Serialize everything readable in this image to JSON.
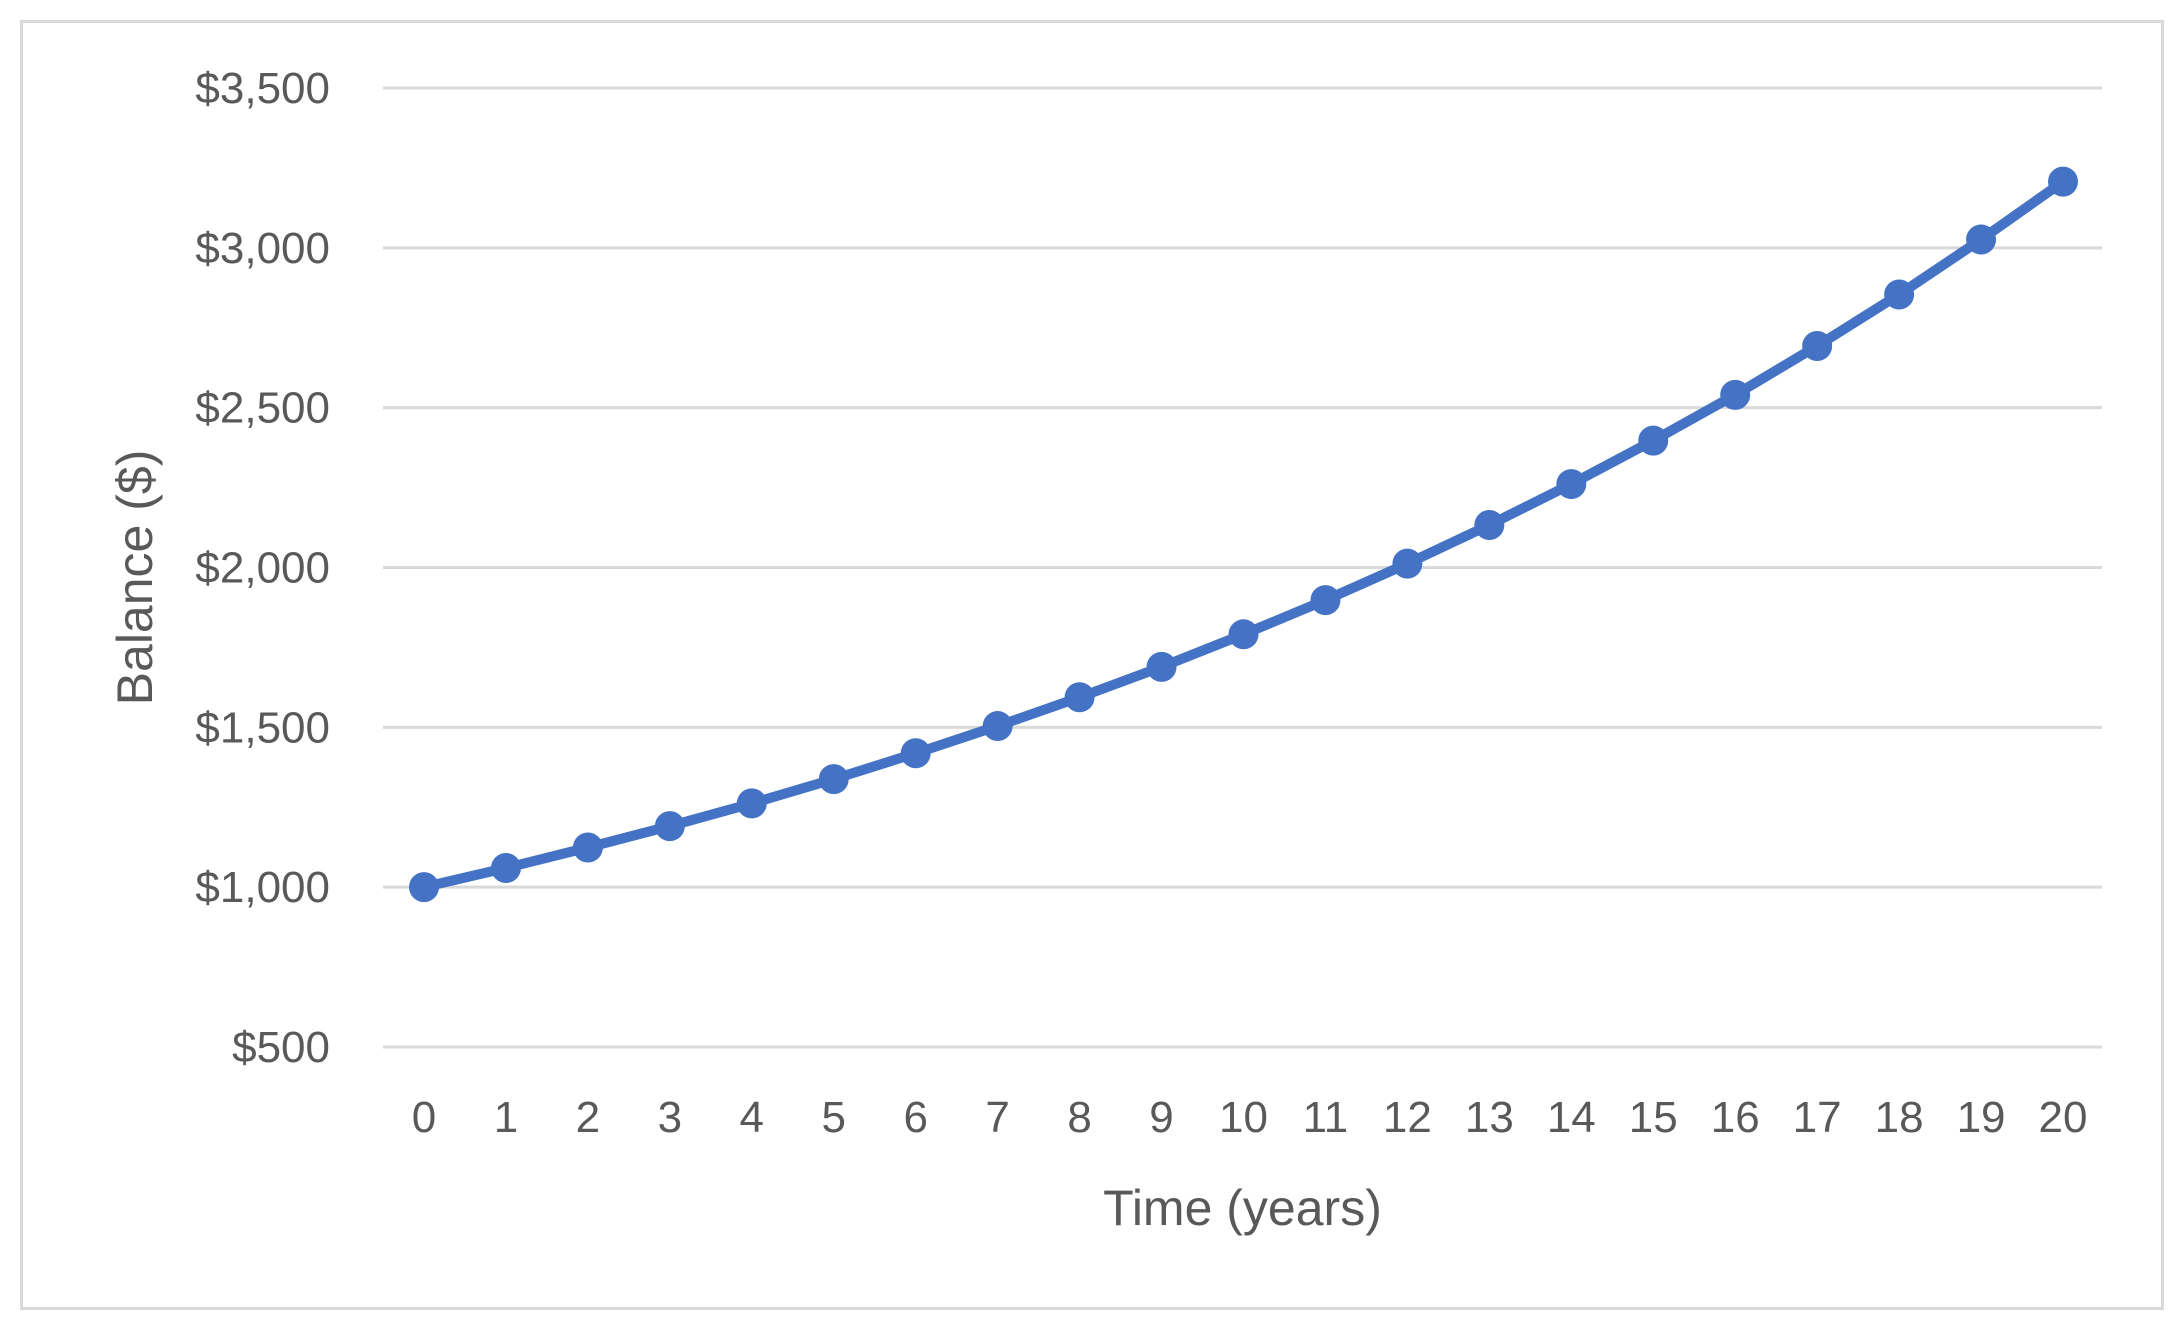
{
  "chart_data": {
    "type": "line",
    "title": "",
    "xlabel": "Time (years)",
    "ylabel": "Balance ($)",
    "x": [
      0,
      1,
      2,
      3,
      4,
      5,
      6,
      7,
      8,
      9,
      10,
      11,
      12,
      13,
      14,
      15,
      16,
      17,
      18,
      19,
      20
    ],
    "x_tick_labels": [
      "0",
      "1",
      "2",
      "3",
      "4",
      "5",
      "6",
      "7",
      "8",
      "9",
      "10",
      "11",
      "12",
      "13",
      "14",
      "15",
      "16",
      "17",
      "18",
      "19",
      "20"
    ],
    "series": [
      {
        "color": "#4472c4",
        "values": [
          1000,
          1060,
          1124,
          1191,
          1262,
          1338,
          1419,
          1504,
          1594,
          1689,
          1791,
          1898,
          2012,
          2133,
          2261,
          2397,
          2540,
          2693,
          2854,
          3026,
          3207
        ]
      }
    ],
    "ylim": [
      500,
      3500
    ],
    "y_ticks": [
      500,
      1000,
      1500,
      2000,
      2500,
      3000,
      3500
    ],
    "y_tick_labels": [
      "$500",
      "$1,000",
      "$1,500",
      "$2,000",
      "$2,500",
      "$3,000",
      "$3,500"
    ],
    "grid": "horizontal",
    "legend": "none"
  }
}
